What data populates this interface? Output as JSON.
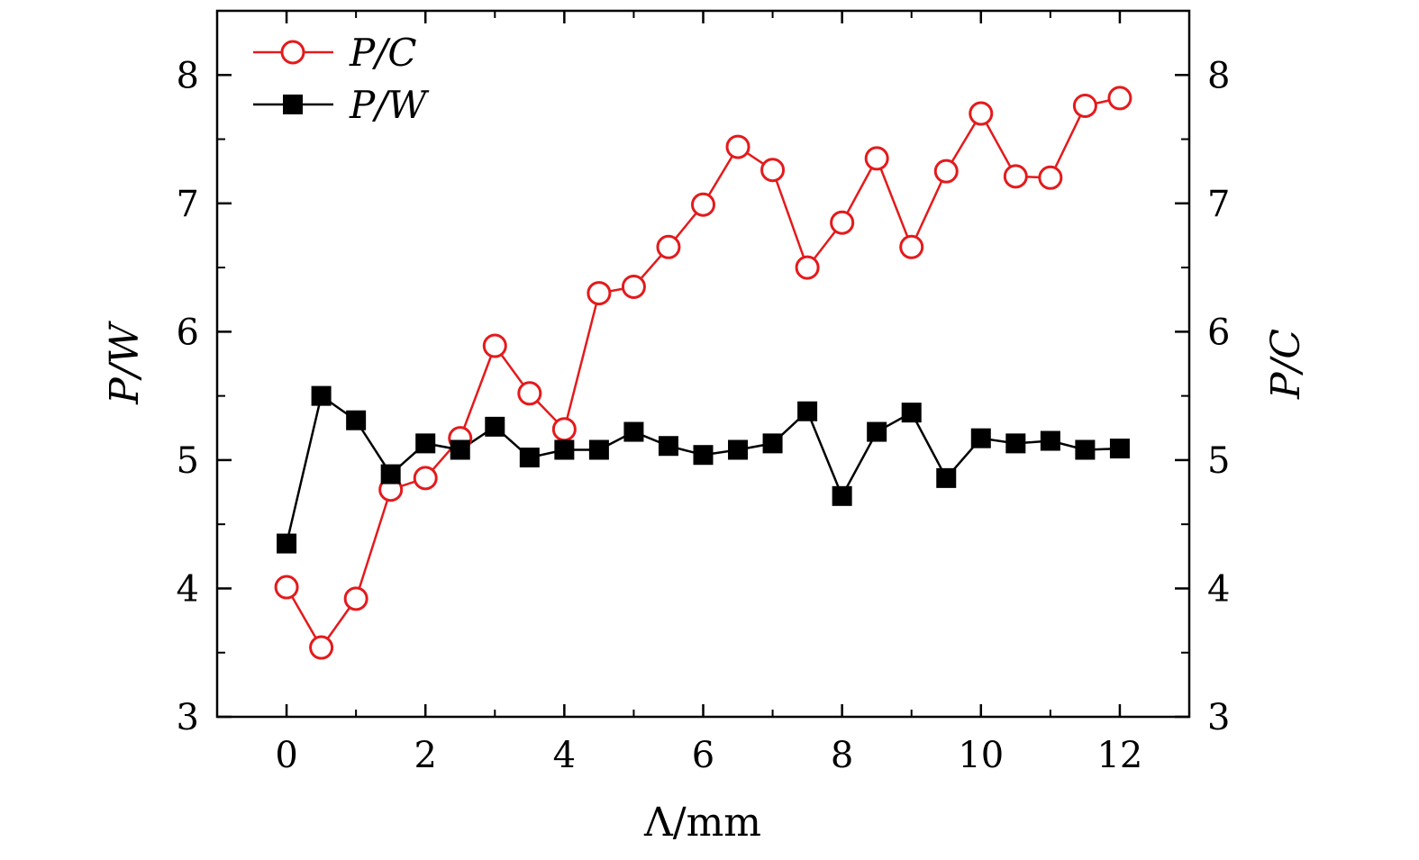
{
  "chart_data": {
    "type": "line",
    "xlabel": "Λ/mm",
    "ylabel_left": "P/W",
    "ylabel_right": "P/C",
    "xlim": [
      -1,
      13
    ],
    "ylim": [
      3,
      8.5
    ],
    "x_ticks": [
      0,
      2,
      4,
      6,
      8,
      10,
      12
    ],
    "y_ticks": [
      3,
      4,
      5,
      6,
      7,
      8
    ],
    "grid": false,
    "legend_position": "top-left",
    "series": [
      {
        "name": "P/C",
        "color": "#e41a1c",
        "marker": "open-circle",
        "x": [
          0,
          0.5,
          1,
          1.5,
          2,
          2.5,
          3,
          3.5,
          4,
          4.5,
          5,
          5.5,
          6,
          6.5,
          7,
          7.5,
          8,
          8.5,
          9,
          9.5,
          10,
          10.5,
          11,
          11.5,
          12
        ],
        "values": [
          4.01,
          3.54,
          3.92,
          4.77,
          4.86,
          5.17,
          5.89,
          5.52,
          5.24,
          6.3,
          6.35,
          6.66,
          6.99,
          7.44,
          7.26,
          6.5,
          6.85,
          7.35,
          6.66,
          7.25,
          7.7,
          7.21,
          7.2,
          7.76,
          7.82
        ]
      },
      {
        "name": "P/W",
        "color": "#000000",
        "marker": "filled-square",
        "x": [
          0,
          0.5,
          1,
          1.5,
          2,
          2.5,
          3,
          3.5,
          4,
          4.5,
          5,
          5.5,
          6,
          6.5,
          7,
          7.5,
          8,
          8.5,
          9,
          9.5,
          10,
          10.5,
          11,
          11.5,
          12
        ],
        "values": [
          4.35,
          5.5,
          5.31,
          4.89,
          5.13,
          5.08,
          5.26,
          5.02,
          5.08,
          5.08,
          5.22,
          5.11,
          5.04,
          5.08,
          5.13,
          5.38,
          4.72,
          5.22,
          5.37,
          4.86,
          5.17,
          5.13,
          5.15,
          5.08,
          5.09
        ]
      }
    ]
  }
}
